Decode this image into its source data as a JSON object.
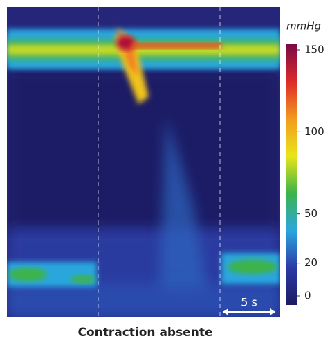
{
  "chart_data": {
    "type": "heatmap",
    "colorbar": {
      "label": "mmHg",
      "lim": [
        0,
        150
      ],
      "ticks": [
        0,
        20,
        50,
        100,
        150
      ],
      "colormap": [
        "#1c1c60",
        "#2b3aa8",
        "#2aa6df",
        "#3cb44a",
        "#e8e617",
        "#f39a1f",
        "#dc2a2a",
        "#7a0a45"
      ]
    },
    "scale_label": "5 s",
    "caption": "Contraction absente"
  }
}
